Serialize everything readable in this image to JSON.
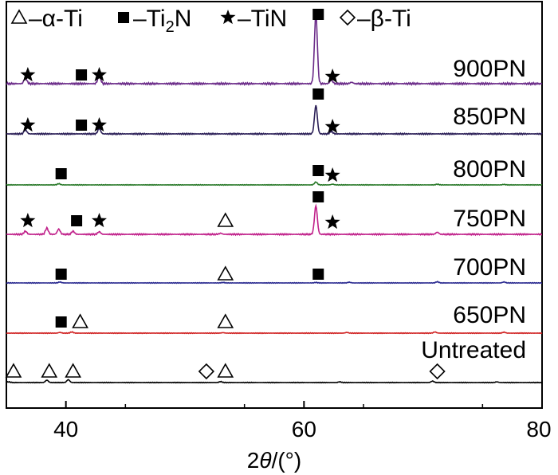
{
  "chart_data": {
    "type": "line",
    "xlabel": "2θ/(°)",
    "xlim": [
      35,
      80
    ],
    "xticks": [
      40,
      60,
      80
    ],
    "tick_labels": [
      "40",
      "60",
      "80"
    ],
    "legend": [
      {
        "symbol": "triangle",
        "label": "–α-Ti"
      },
      {
        "symbol": "square",
        "label": "–Ti2N"
      },
      {
        "symbol": "star",
        "label": "–TiN"
      },
      {
        "symbol": "diamond",
        "label": "–β-Ti"
      }
    ],
    "legend_position": "top",
    "grid": false,
    "series": [
      {
        "name": "900PN",
        "color": "#6a2a88",
        "peaks": [
          [
            36.6,
            0.08
          ],
          [
            42.8,
            0.12
          ],
          [
            61.0,
            0.98
          ],
          [
            62.3,
            0.05
          ],
          [
            64.0,
            0.02
          ]
        ],
        "markers": [
          {
            "symbol": "star",
            "x": 36.8
          },
          {
            "symbol": "square",
            "x": 41.3
          },
          {
            "symbol": "star",
            "x": 42.8
          },
          {
            "symbol": "square",
            "x": 61.2
          },
          {
            "symbol": "star",
            "x": 62.4
          }
        ]
      },
      {
        "name": "850PN",
        "color": "#2b1f57",
        "peaks": [
          [
            36.6,
            0.08
          ],
          [
            42.8,
            0.1
          ],
          [
            61.0,
            0.55
          ],
          [
            62.3,
            0.05
          ]
        ],
        "markers": [
          {
            "symbol": "star",
            "x": 36.8
          },
          {
            "symbol": "square",
            "x": 41.3
          },
          {
            "symbol": "star",
            "x": 42.8
          },
          {
            "symbol": "square",
            "x": 61.2
          },
          {
            "symbol": "star",
            "x": 62.4
          }
        ]
      },
      {
        "name": "800PN",
        "color": "#2a7a2a",
        "peaks": [
          [
            39.4,
            0.05
          ],
          [
            61.0,
            0.12
          ],
          [
            62.4,
            0.03
          ],
          [
            71.2,
            0.03
          ],
          [
            76.8,
            0.02
          ]
        ],
        "markers": [
          {
            "symbol": "square",
            "x": 39.6
          },
          {
            "symbol": "square",
            "x": 61.2
          },
          {
            "symbol": "star",
            "x": 62.4
          }
        ]
      },
      {
        "name": "750PN",
        "color": "#c0208a",
        "peaks": [
          [
            36.6,
            0.06
          ],
          [
            38.4,
            0.12
          ],
          [
            39.4,
            0.1
          ],
          [
            40.6,
            0.06
          ],
          [
            42.8,
            0.05
          ],
          [
            53.0,
            0.02
          ],
          [
            61.0,
            0.55
          ],
          [
            71.2,
            0.04
          ]
        ],
        "markers": [
          {
            "symbol": "star",
            "x": 36.8
          },
          {
            "symbol": "square",
            "x": 40.9
          },
          {
            "symbol": "star",
            "x": 42.8
          },
          {
            "symbol": "triangle",
            "x": 53.4
          },
          {
            "symbol": "square",
            "x": 61.2
          },
          {
            "symbol": "star",
            "x": 62.4
          }
        ]
      },
      {
        "name": "700PN",
        "color": "#2a2a90",
        "peaks": [
          [
            39.5,
            0.04
          ],
          [
            53.2,
            0.02
          ],
          [
            61.0,
            0.02
          ],
          [
            63.8,
            0.03
          ],
          [
            71.2,
            0.05
          ],
          [
            76.8,
            0.04
          ]
        ],
        "markers": [
          {
            "symbol": "square",
            "x": 39.6
          },
          {
            "symbol": "triangle",
            "x": 53.4
          },
          {
            "symbol": "square",
            "x": 61.2
          }
        ]
      },
      {
        "name": "650PN",
        "color": "#d02020",
        "peaks": [
          [
            39.5,
            0.03
          ],
          [
            40.5,
            0.05
          ],
          [
            53.2,
            0.02
          ],
          [
            63.6,
            0.03
          ],
          [
            71.0,
            0.05
          ],
          [
            76.8,
            0.04
          ]
        ],
        "markers": [
          {
            "symbol": "square",
            "x": 39.6
          },
          {
            "symbol": "triangle",
            "x": 41.2
          },
          {
            "symbol": "triangle",
            "x": 53.4
          }
        ]
      },
      {
        "name": "Untreated",
        "color": "#000000",
        "peaks": [
          [
            35.2,
            0.03
          ],
          [
            38.4,
            0.1
          ],
          [
            40.2,
            0.12
          ],
          [
            53.0,
            0.04
          ],
          [
            63.0,
            0.03
          ],
          [
            70.8,
            0.06
          ],
          [
            76.2,
            0.03
          ]
        ],
        "markers": [
          {
            "symbol": "triangle",
            "x": 35.6
          },
          {
            "symbol": "triangle",
            "x": 38.6
          },
          {
            "symbol": "triangle",
            "x": 40.6
          },
          {
            "symbol": "diamond",
            "x": 51.8
          },
          {
            "symbol": "triangle",
            "x": 53.4
          },
          {
            "symbol": "diamond",
            "x": 71.2
          }
        ]
      }
    ]
  }
}
